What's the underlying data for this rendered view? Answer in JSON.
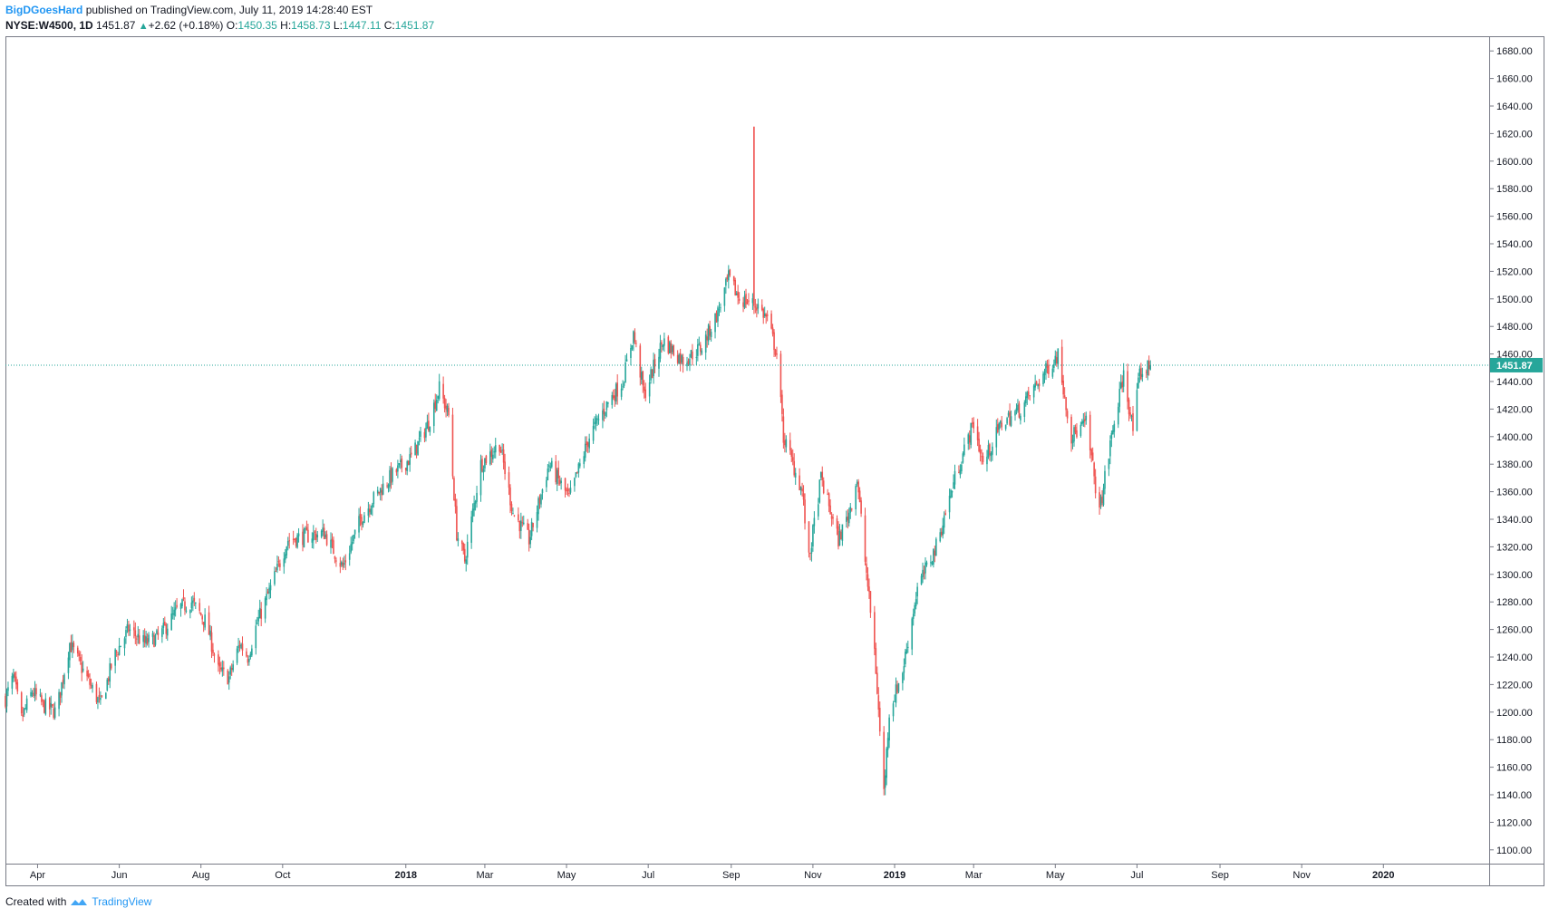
{
  "header": {
    "user": "BigDGoesHard",
    "published_text": "published on TradingView.com, July 11, 2019 14:28:40 EST",
    "symbol": "NYSE:W4500, 1D",
    "last": "1451.87",
    "change": "+2.62 (+0.18%)",
    "open_label": "O:",
    "open": "1450.35",
    "high_label": "H:",
    "high": "1458.73",
    "low_label": "L:",
    "low": "1447.11",
    "close_label": "C:",
    "close": "1451.87"
  },
  "footer": {
    "created_with": "Created with",
    "brand": "TradingView"
  },
  "colors": {
    "up": "#26a69a",
    "down": "#ef5350",
    "price_line": "#26a69a",
    "axis": "#787b86"
  },
  "chart_data": {
    "type": "candlestick",
    "symbol": "NYSE:W4500",
    "interval": "1D",
    "ylim": [
      1090,
      1690
    ],
    "y_ticks": [
      "1100.00",
      "1120.00",
      "1140.00",
      "1160.00",
      "1180.00",
      "1200.00",
      "1220.00",
      "1240.00",
      "1260.00",
      "1280.00",
      "1300.00",
      "1320.00",
      "1340.00",
      "1360.00",
      "1380.00",
      "1400.00",
      "1420.00",
      "1440.00",
      "1460.00",
      "1480.00",
      "1500.00",
      "1520.00",
      "1540.00",
      "1560.00",
      "1580.00",
      "1600.00",
      "1620.00",
      "1640.00",
      "1660.00",
      "1680.00"
    ],
    "x_ticks": [
      {
        "label": "Apr",
        "date": "2017-04-01",
        "bold": false
      },
      {
        "label": "Jun",
        "date": "2017-06-01",
        "bold": false
      },
      {
        "label": "Aug",
        "date": "2017-08-01",
        "bold": false
      },
      {
        "label": "Oct",
        "date": "2017-10-01",
        "bold": false
      },
      {
        "label": "2018",
        "date": "2018-01-01",
        "bold": true
      },
      {
        "label": "Mar",
        "date": "2018-03-01",
        "bold": false
      },
      {
        "label": "May",
        "date": "2018-05-01",
        "bold": false
      },
      {
        "label": "Jul",
        "date": "2018-07-01",
        "bold": false
      },
      {
        "label": "Sep",
        "date": "2018-09-01",
        "bold": false
      },
      {
        "label": "Nov",
        "date": "2018-11-01",
        "bold": false
      },
      {
        "label": "2019",
        "date": "2019-01-01",
        "bold": true
      },
      {
        "label": "Mar",
        "date": "2019-03-01",
        "bold": false
      },
      {
        "label": "May",
        "date": "2019-05-01",
        "bold": false
      },
      {
        "label": "Jul",
        "date": "2019-07-01",
        "bold": false
      },
      {
        "label": "Sep",
        "date": "2019-09-01",
        "bold": false
      },
      {
        "label": "Nov",
        "date": "2019-11-01",
        "bold": false
      },
      {
        "label": "2020",
        "date": "2020-01-01",
        "bold": true
      }
    ],
    "x_range": [
      "2017-03-08",
      "2020-03-20"
    ],
    "current_price": 1451.87,
    "current_price_label": "1451.87",
    "close_path": [
      {
        "date": "2017-03-08",
        "close": 1210
      },
      {
        "date": "2017-03-14",
        "close": 1225
      },
      {
        "date": "2017-03-20",
        "close": 1195
      },
      {
        "date": "2017-03-28",
        "close": 1215
      },
      {
        "date": "2017-04-05",
        "close": 1205
      },
      {
        "date": "2017-04-15",
        "close": 1200
      },
      {
        "date": "2017-04-25",
        "close": 1250
      },
      {
        "date": "2017-05-05",
        "close": 1230
      },
      {
        "date": "2017-05-18",
        "close": 1205
      },
      {
        "date": "2017-05-28",
        "close": 1240
      },
      {
        "date": "2017-06-08",
        "close": 1260
      },
      {
        "date": "2017-06-20",
        "close": 1250
      },
      {
        "date": "2017-07-01",
        "close": 1255
      },
      {
        "date": "2017-07-15",
        "close": 1275
      },
      {
        "date": "2017-07-25",
        "close": 1280
      },
      {
        "date": "2017-08-05",
        "close": 1265
      },
      {
        "date": "2017-08-14",
        "close": 1230
      },
      {
        "date": "2017-08-22",
        "close": 1225
      },
      {
        "date": "2017-08-30",
        "close": 1250
      },
      {
        "date": "2017-09-05",
        "close": 1240
      },
      {
        "date": "2017-09-12",
        "close": 1265
      },
      {
        "date": "2017-09-22",
        "close": 1290
      },
      {
        "date": "2017-10-05",
        "close": 1325
      },
      {
        "date": "2017-10-20",
        "close": 1328
      },
      {
        "date": "2017-11-01",
        "close": 1330
      },
      {
        "date": "2017-11-15",
        "close": 1305
      },
      {
        "date": "2017-11-28",
        "close": 1340
      },
      {
        "date": "2017-12-08",
        "close": 1355
      },
      {
        "date": "2017-12-20",
        "close": 1370
      },
      {
        "date": "2018-01-05",
        "close": 1385
      },
      {
        "date": "2018-01-18",
        "close": 1410
      },
      {
        "date": "2018-01-26",
        "close": 1435
      },
      {
        "date": "2018-02-02",
        "close": 1415
      },
      {
        "date": "2018-02-08",
        "close": 1330
      },
      {
        "date": "2018-02-14",
        "close": 1310
      },
      {
        "date": "2018-02-26",
        "close": 1380
      },
      {
        "date": "2018-03-12",
        "close": 1395
      },
      {
        "date": "2018-03-22",
        "close": 1345
      },
      {
        "date": "2018-04-03",
        "close": 1325
      },
      {
        "date": "2018-04-18",
        "close": 1380
      },
      {
        "date": "2018-05-03",
        "close": 1355
      },
      {
        "date": "2018-05-18",
        "close": 1400
      },
      {
        "date": "2018-06-01",
        "close": 1425
      },
      {
        "date": "2018-06-12",
        "close": 1440
      },
      {
        "date": "2018-06-20",
        "close": 1475
      },
      {
        "date": "2018-06-28",
        "close": 1430
      },
      {
        "date": "2018-07-12",
        "close": 1470
      },
      {
        "date": "2018-07-27",
        "close": 1455
      },
      {
        "date": "2018-08-10",
        "close": 1465
      },
      {
        "date": "2018-08-22",
        "close": 1490
      },
      {
        "date": "2018-08-30",
        "close": 1515
      },
      {
        "date": "2018-09-07",
        "close": 1500
      },
      {
        "date": "2018-09-14",
        "close": 1498
      },
      {
        "date": "2018-09-21",
        "close": 1495
      },
      {
        "date": "2018-09-28",
        "close": 1485
      },
      {
        "date": "2018-10-05",
        "close": 1460
      },
      {
        "date": "2018-10-10",
        "close": 1400
      },
      {
        "date": "2018-10-24",
        "close": 1360
      },
      {
        "date": "2018-10-29",
        "close": 1310
      },
      {
        "date": "2018-11-07",
        "close": 1370
      },
      {
        "date": "2018-11-20",
        "close": 1325
      },
      {
        "date": "2018-11-28",
        "close": 1345
      },
      {
        "date": "2018-12-04",
        "close": 1370
      },
      {
        "date": "2018-12-10",
        "close": 1310
      },
      {
        "date": "2018-12-17",
        "close": 1245
      },
      {
        "date": "2018-12-24",
        "close": 1142
      },
      {
        "date": "2018-12-28",
        "close": 1200
      },
      {
        "date": "2019-01-07",
        "close": 1230
      },
      {
        "date": "2019-01-18",
        "close": 1290
      },
      {
        "date": "2019-02-01",
        "close": 1320
      },
      {
        "date": "2019-02-15",
        "close": 1370
      },
      {
        "date": "2019-03-01",
        "close": 1410
      },
      {
        "date": "2019-03-08",
        "close": 1380
      },
      {
        "date": "2019-03-22",
        "close": 1410
      },
      {
        "date": "2019-04-05",
        "close": 1420
      },
      {
        "date": "2019-04-22",
        "close": 1445
      },
      {
        "date": "2019-05-03",
        "close": 1460
      },
      {
        "date": "2019-05-13",
        "close": 1400
      },
      {
        "date": "2019-05-24",
        "close": 1410
      },
      {
        "date": "2019-06-03",
        "close": 1345
      },
      {
        "date": "2019-06-12",
        "close": 1400
      },
      {
        "date": "2019-06-21",
        "close": 1445
      },
      {
        "date": "2019-06-28",
        "close": 1405
      },
      {
        "date": "2019-07-03",
        "close": 1445
      },
      {
        "date": "2019-07-11",
        "close": 1451.87
      }
    ],
    "spike": {
      "date": "2018-09-18",
      "high": 1625
    },
    "title": "",
    "xlabel": "",
    "ylabel": ""
  }
}
